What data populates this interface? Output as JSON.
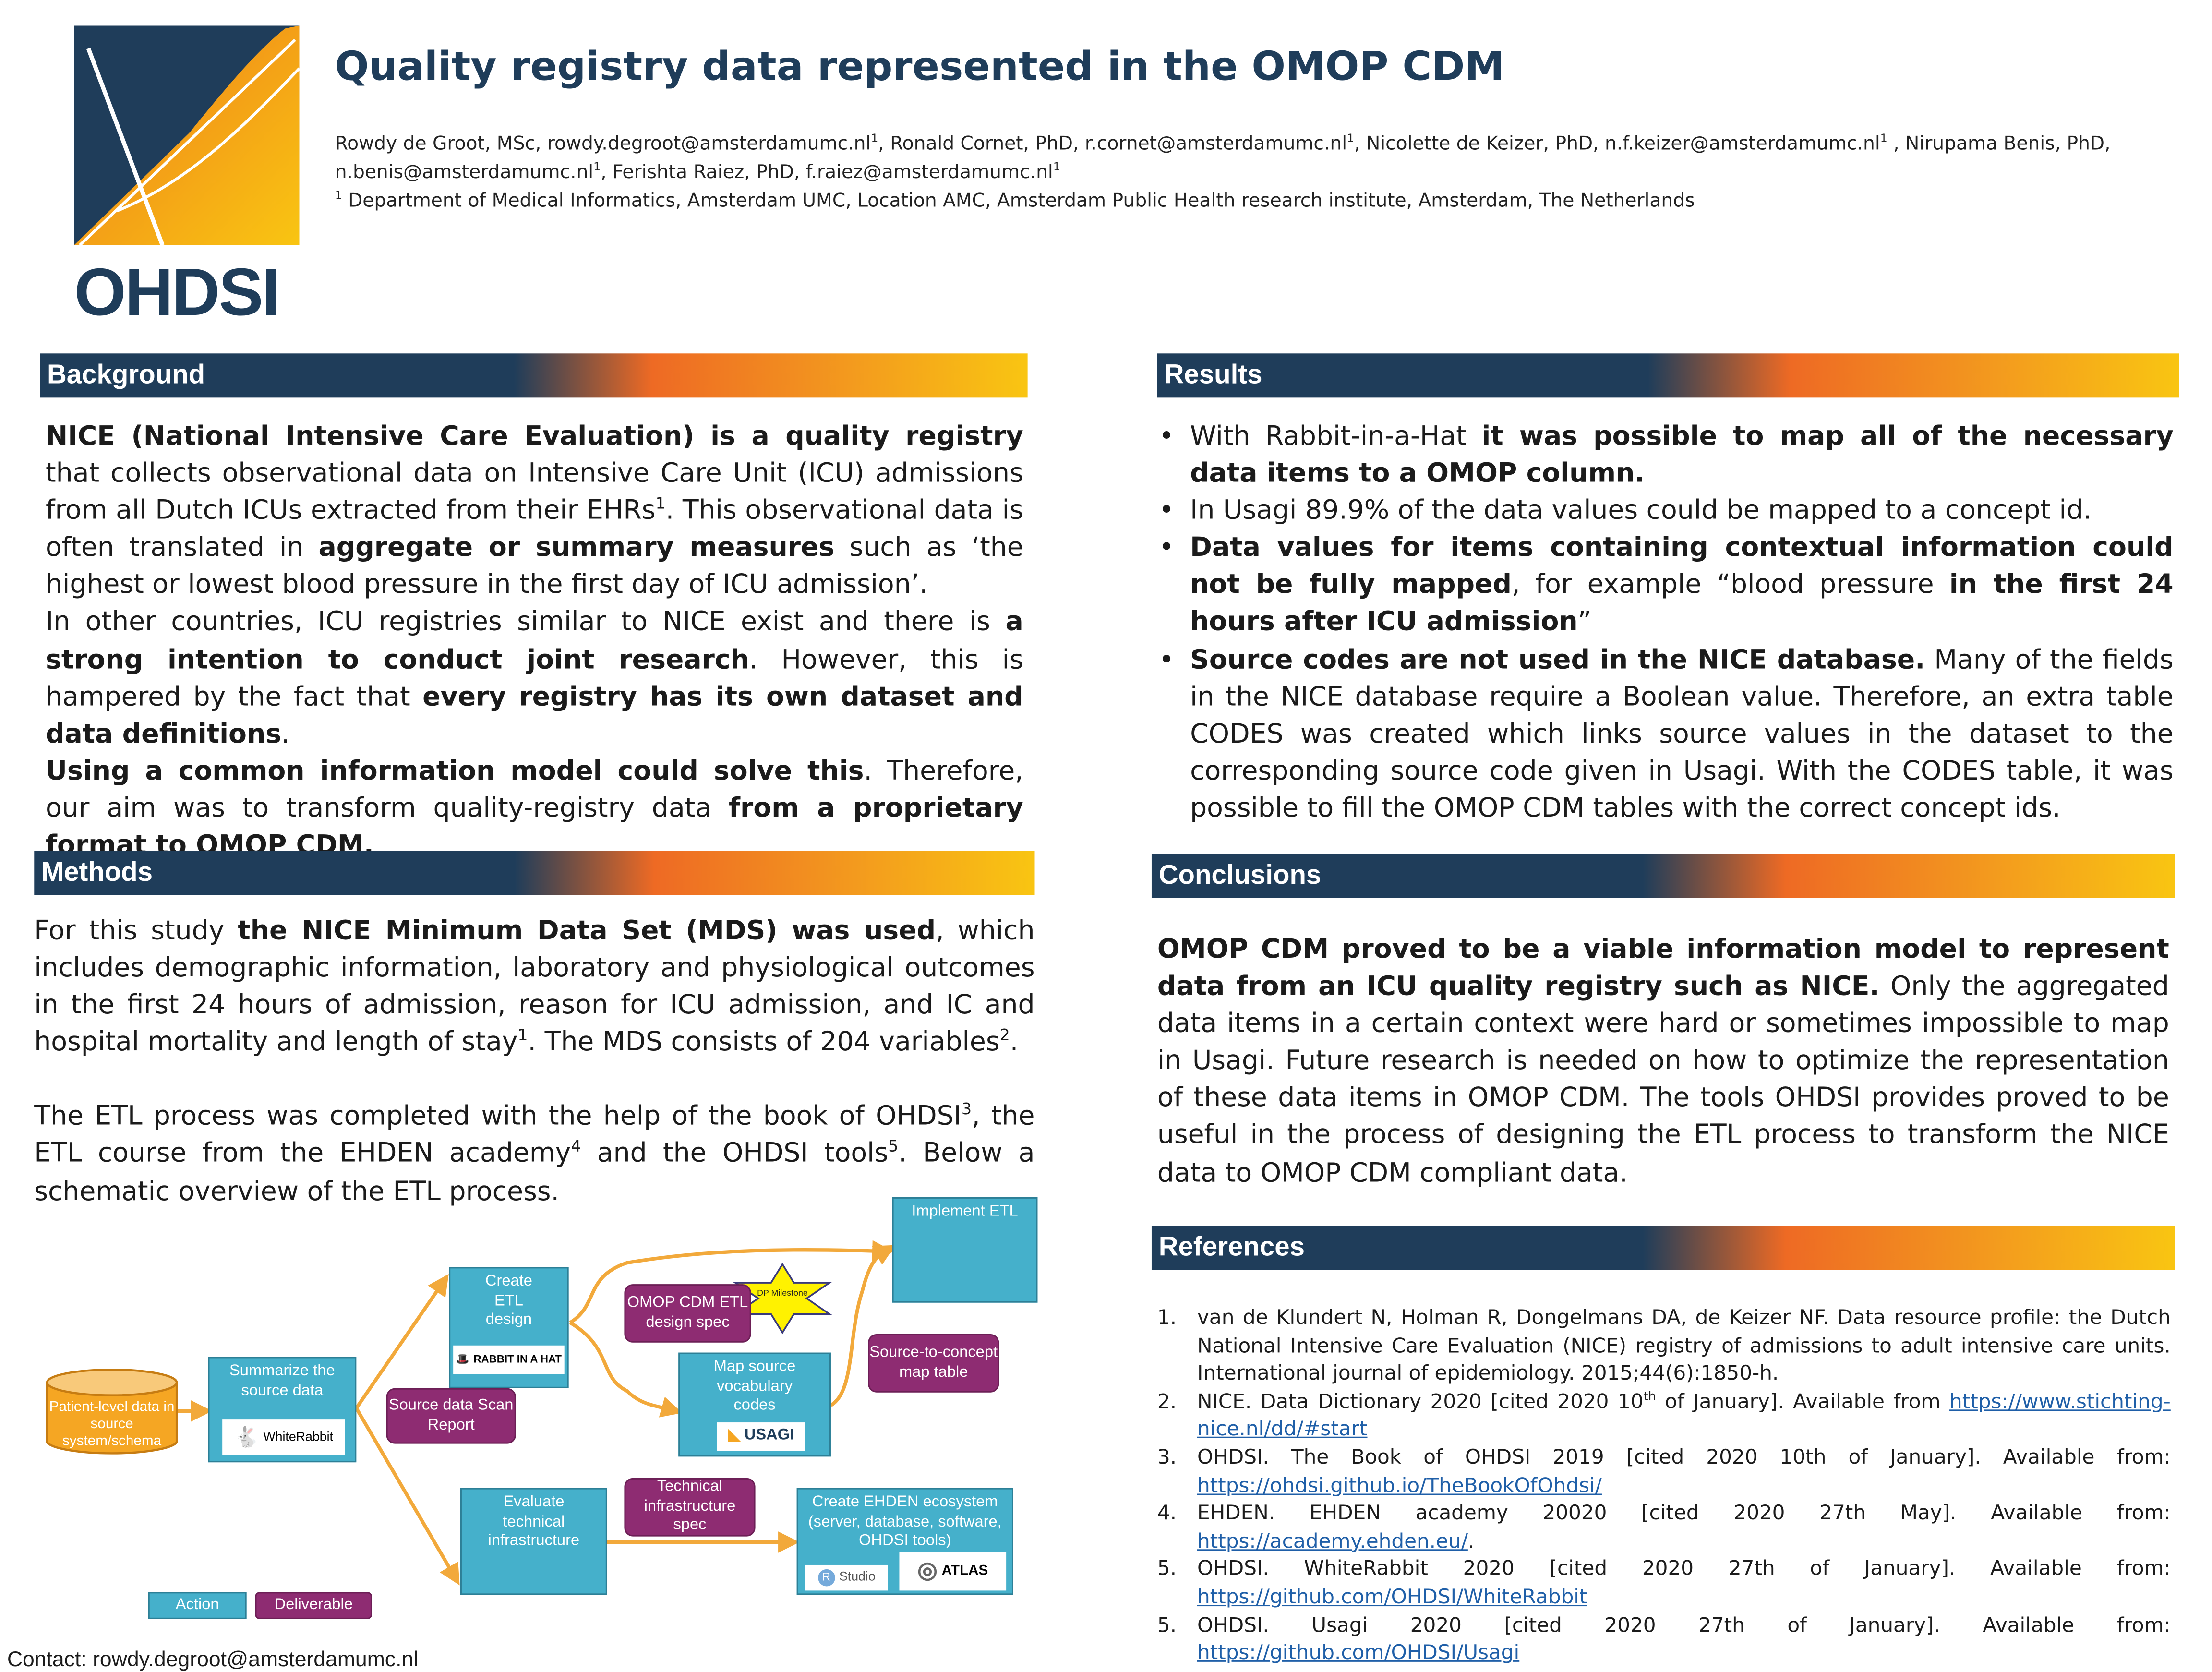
{
  "colors": {
    "navy": "#1f3d5a",
    "orange": "#f39a1e",
    "yellow": "#f9c512",
    "action": "#45b0cb",
    "deliverable": "#8e2c72",
    "link": "#1f5fa8"
  },
  "logo": {
    "text": "OHDSI"
  },
  "header": {
    "title": "Quality registry data represented in the OMOP CDM",
    "authors": [
      [
        {
          "t": "Rowdy de Groot, MSc, rowdy.degroot@amsterdamumc.nl"
        },
        {
          "t": "1",
          "sup": true
        },
        {
          "t": ", Ronald Cornet, PhD, r.cornet@amsterdamumc.nl"
        },
        {
          "t": "1",
          "sup": true
        },
        {
          "t": ", Nicolette de Keizer, PhD, n.f.keizer@amsterdamumc.nl"
        },
        {
          "t": "1",
          "sup": true
        },
        {
          "t": " , Nirupama Benis, PhD, n.benis@amsterdamumc.nl"
        },
        {
          "t": "1",
          "sup": true
        },
        {
          "t": ", Ferishta Raiez, PhD, f.raiez@amsterdamumc.nl"
        },
        {
          "t": "1",
          "sup": true
        }
      ],
      [
        {
          "t": "1",
          "sup": true
        },
        {
          "t": " Department of Medical Informatics, Amsterdam UMC, Location AMC, Amsterdam Public Health research institute, Amsterdam, The Netherlands"
        }
      ]
    ]
  },
  "background": {
    "heading": "Background",
    "paragraphs": [
      [
        {
          "t": "NICE (National Intensive Care Evaluation) is a quality registry",
          "b": true
        },
        {
          "t": " that collects observational data on Intensive Care Unit (ICU) admissions from all Dutch ICUs extracted from their EHRs"
        },
        {
          "t": "1",
          "sup": true
        },
        {
          "t": ". This observational data is often translated in "
        },
        {
          "t": "aggregate or summary measures",
          "b": true
        },
        {
          "t": " such as ‘the highest or lowest blood pressure in the first day of ICU admission’."
        }
      ],
      [
        {
          "t": "In other countries, ICU registries similar to NICE exist and there is "
        },
        {
          "t": "a strong intention to conduct joint research",
          "b": true
        },
        {
          "t": ". However, this is hampered by the fact that "
        },
        {
          "t": "every registry has its own dataset and data definitions",
          "b": true
        },
        {
          "t": "."
        }
      ],
      [
        {
          "t": "Using a common information model could solve this",
          "b": true
        },
        {
          "t": ". Therefore, our aim was to transform quality-registry data "
        },
        {
          "t": "from a proprietary format to OMOP CDM.",
          "b": true
        }
      ]
    ]
  },
  "methods": {
    "heading": "Methods",
    "paragraphs": [
      [
        {
          "t": "For this study "
        },
        {
          "t": "the NICE Minimum Data Set (MDS) was used",
          "b": true
        },
        {
          "t": ", which includes demographic information, laboratory and physiological outcomes in the first 24 hours of admission, reason for ICU admission, and IC and hospital mortality and length of stay"
        },
        {
          "t": "1",
          "sup": true
        },
        {
          "t": ". The MDS consists of 204 variables"
        },
        {
          "t": "2",
          "sup": true
        },
        {
          "t": "."
        }
      ],
      [
        {
          "t": "The ETL process was completed with the help of the book of OHDSI"
        },
        {
          "t": "3",
          "sup": true
        },
        {
          "t": ", the ETL course from the EHDEN academy"
        },
        {
          "t": "4",
          "sup": true
        },
        {
          "t": " and the OHDSI tools"
        },
        {
          "t": "5",
          "sup": true
        },
        {
          "t": ". Below a schematic overview of the ETL process."
        }
      ]
    ]
  },
  "diagram": {
    "source": "Patient-level data in source system/schema",
    "summarize": "Summarize the source data",
    "whiterabbit": "WhiteRabbit",
    "scan_report": "Source data Scan Report",
    "create_etl": "Create ETL design",
    "rabbit_in_a_hat": "RABBIT IN A HAT",
    "etl_spec": "OMOP CDM ETL design spec",
    "milestone": "DP Milestone",
    "implement": "Implement ETL",
    "map_source": "Map source vocabulary codes",
    "usagi": "USAGI",
    "stcm": "Source-to-concept map table",
    "evaluate": "Evaluate technical infrastructure",
    "tech_spec": "Technical infrastructure spec",
    "ehden": "Create EHDEN ecosystem (server, database, software, OHDSI tools)",
    "rstudio": "Studio",
    "atlas": "ATLAS",
    "legend_action": "Action",
    "legend_deliverable": "Deliverable"
  },
  "contact": "Contact:  rowdy.degroot@amsterdamumc.nl",
  "results": {
    "heading": "Results",
    "items": [
      [
        {
          "t": "With Rabbit-in-a-Hat "
        },
        {
          "t": "it was possible to map all of the necessary data items to a OMOP column.",
          "b": true
        }
      ],
      [
        {
          "t": "In Usagi 89.9% of the data values could be mapped to a concept id."
        }
      ],
      [
        {
          "t": "Data values for items containing contextual information could not be fully mapped",
          "b": true
        },
        {
          "t": ", for example “blood pressure "
        },
        {
          "t": "in the first 24 hours after ICU admission",
          "b": true
        },
        {
          "t": "”"
        }
      ],
      [
        {
          "t": "Source codes are not used in the NICE database.",
          "b": true
        },
        {
          "t": " Many of the fields in the NICE database require a Boolean value. Therefore, an extra table CODES was created which links source values in the dataset to the corresponding source code given in Usagi. With the CODES table, it was possible to fill the OMOP CDM tables with the correct concept ids."
        }
      ]
    ]
  },
  "conclusions": {
    "heading": "Conclusions",
    "paragraphs": [
      [
        {
          "t": "OMOP CDM proved to be a viable information model to represent data from an ICU quality registry such as NICE.",
          "b": true
        },
        {
          "t": " Only the aggregated data items in a certain context were hard or sometimes impossible to map in Usagi. Future research is needed on how to optimize the representation of these data items in OMOP CDM. The tools OHDSI provides proved to be useful in the process of designing the ETL process to transform the NICE data to OMOP CDM compliant data."
        }
      ]
    ]
  },
  "references": {
    "heading": "References",
    "items": [
      {
        "num": "1.",
        "parts": [
          {
            "t": "van de Klundert N, Holman R, Dongelmans DA, de Keizer NF. Data resource profile: the Dutch National Intensive Care Evaluation (NICE) registry of admissions to adult intensive care units. International journal of epidemiology. 2015;44(6):1850-h."
          }
        ]
      },
      {
        "num": "2.",
        "parts": [
          {
            "t": "NICE. Data Dictionary 2020 [cited 2020 10"
          },
          {
            "t": "th",
            "sup": true
          },
          {
            "t": " of January]. Available from "
          },
          {
            "t": "https://www.stichting-nice.nl/dd/#start",
            "link": true
          }
        ]
      },
      {
        "num": "3.",
        "parts": [
          {
            "t": "OHDSI. The Book of OHDSI 2019 [cited 2020 10th of January]. Available from: "
          },
          {
            "t": "https://ohdsi.github.io/TheBookOfOhdsi/",
            "link": true
          }
        ]
      },
      {
        "num": "4.",
        "parts": [
          {
            "t": "EHDEN. EHDEN academy 20020 [cited 2020 27th May]. Available from: "
          },
          {
            "t": "https://academy.ehden.eu/",
            "link": true
          },
          {
            "t": "."
          }
        ]
      },
      {
        "num": "5.",
        "parts": [
          {
            "t": "OHDSI. WhiteRabbit 2020 [cited 2020 27th of January]. Available from: "
          },
          {
            "t": "https://github.com/OHDSI/WhiteRabbit",
            "link": true
          }
        ]
      },
      {
        "num": "5.",
        "parts": [
          {
            "t": "OHDSI. Usagi 2020 [cited 2020 27th of January]. Available from: "
          },
          {
            "t": "https://github.com/OHDSI/Usagi",
            "link": true
          }
        ]
      }
    ]
  }
}
